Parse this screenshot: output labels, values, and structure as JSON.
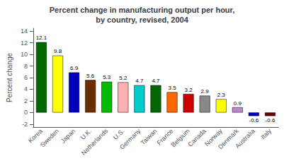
{
  "chart_data": {
    "type": "bar",
    "title": "Percent change in manufacturing output per hour,\nby country, revised, 2004",
    "ylabel": "Percent change",
    "categories": [
      "Korea",
      "Sweden",
      "Japan",
      "U.K.",
      "Netherlands",
      "U.S.",
      "Germany",
      "Taiwan",
      "France",
      "Belgium",
      "Canada",
      "Norway",
      "Denmark",
      "Australia",
      "Italy"
    ],
    "values": [
      12.1,
      9.8,
      6.9,
      5.6,
      5.3,
      5.2,
      4.7,
      4.7,
      3.5,
      3.2,
      2.9,
      2.3,
      0.9,
      -0.6,
      -0.6
    ],
    "colors": [
      "#006600",
      "#FFFF00",
      "#0000BB",
      "#6B2E00",
      "#00BB00",
      "#FFB0B0",
      "#00CCCC",
      "#006600",
      "#FF6600",
      "#CC0000",
      "#888888",
      "#FFFF00",
      "#BB88CC",
      "#0000BB",
      "#660000"
    ],
    "ylim": [
      -2.5,
      14.5
    ],
    "yticks": [
      -2,
      0,
      2,
      4,
      6,
      8,
      10,
      12,
      14
    ],
    "grid": false,
    "data_labels": true
  }
}
